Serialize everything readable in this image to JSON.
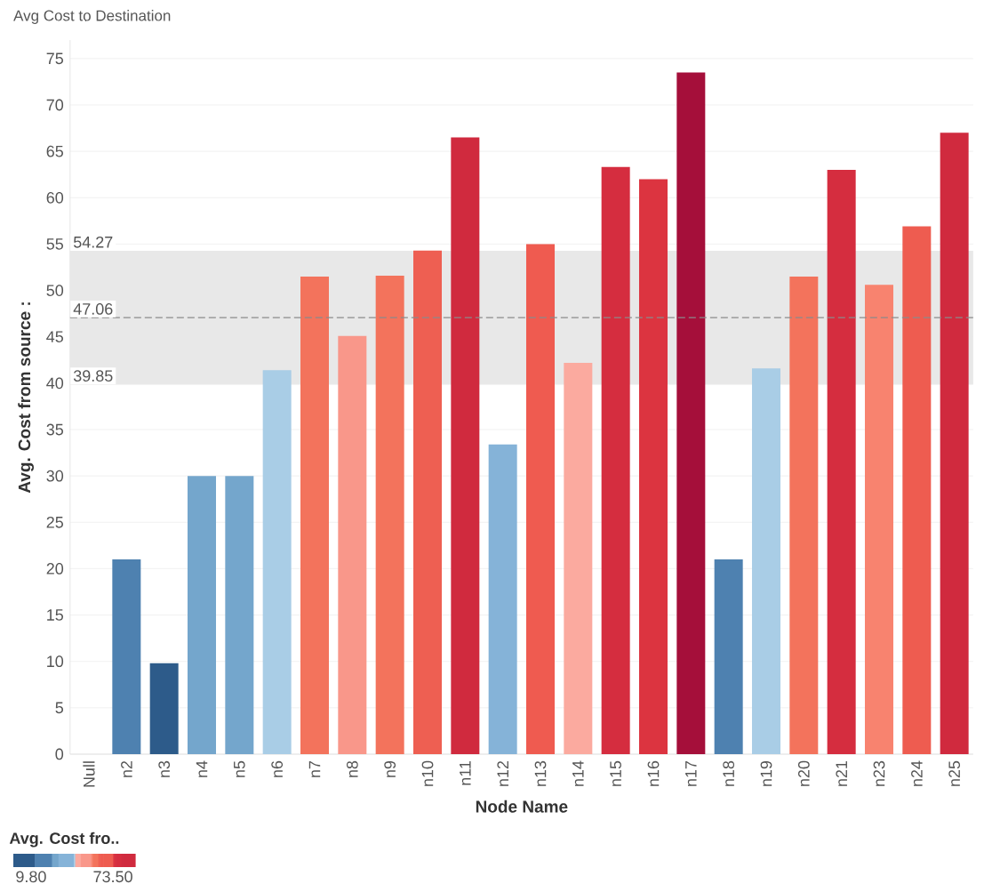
{
  "chart_data": {
    "type": "bar",
    "title": "Avg Cost to Destination",
    "xlabel": "Node Name",
    "ylabel": "Avg. Cost from source :",
    "categories": [
      "Null",
      "n2",
      "n3",
      "n4",
      "n5",
      "n6",
      "n7",
      "n8",
      "n9",
      "n10",
      "n11",
      "n12",
      "n13",
      "n14",
      "n15",
      "n16",
      "n17",
      "n18",
      "n19",
      "n20",
      "n21",
      "n23",
      "n24",
      "n25"
    ],
    "values": [
      null,
      21.0,
      9.8,
      30.0,
      30.0,
      41.4,
      51.5,
      45.1,
      51.6,
      54.3,
      66.5,
      33.4,
      55.0,
      42.2,
      63.3,
      62.0,
      73.5,
      21.0,
      41.6,
      51.5,
      63.0,
      50.6,
      56.9,
      67.0
    ],
    "colors": [
      "#cccccc",
      "#4e81b0",
      "#2d5b8a",
      "#74a6cc",
      "#74a6cc",
      "#a9cde6",
      "#f3735c",
      "#f9978a",
      "#f3735c",
      "#ee5f52",
      "#d02a3e",
      "#85b3d8",
      "#ef5b50",
      "#fbaa9f",
      "#d52d3f",
      "#dc3440",
      "#a50f3a",
      "#4e81b0",
      "#a9cde6",
      "#f3735c",
      "#d52d3f",
      "#f8836f",
      "#ee5c50",
      "#d02a3e"
    ],
    "ylim": [
      0,
      77
    ],
    "yticks": [
      0,
      5,
      10,
      15,
      20,
      25,
      30,
      35,
      40,
      45,
      50,
      55,
      60,
      65,
      70,
      75
    ],
    "grid": "y",
    "ref_lines": [
      {
        "axis": "y",
        "value": 47.06,
        "label": "47.06",
        "color": "#8a8a8a",
        "line_style": "dashed"
      }
    ],
    "bands": [
      {
        "axis": "y",
        "from": 39.85,
        "to": 54.27,
        "color": "#e8e8e8"
      }
    ],
    "annotations": [
      {
        "text": "54.27",
        "y": 54.27
      },
      {
        "text": "39.85",
        "y": 39.85
      }
    ],
    "clabel": "Avg. Cost fro..",
    "clim": [
      9.8,
      73.5
    ],
    "cticks": [
      {
        "value": 9.8,
        "label": "9.80"
      },
      {
        "value": 73.5,
        "label": "73.50"
      }
    ]
  }
}
